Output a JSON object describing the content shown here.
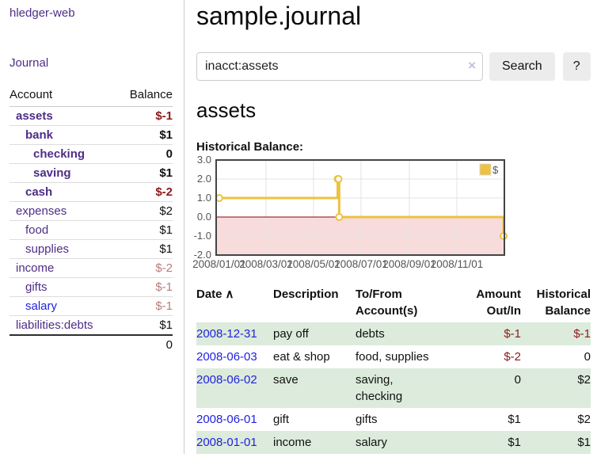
{
  "colors": {
    "purple_link": "#4d2d87",
    "blue_link": "#2222dd",
    "negative_deep": "#8b1a1a",
    "negative_soft": "#b87c7c",
    "row_green": "#dcebdc",
    "series_yellow": "#edc240",
    "negative_region_pink": "#f8dcdc",
    "zero_line_red": "#8b0000"
  },
  "brand": {
    "label": "hledger-web"
  },
  "nav": {
    "journal": "Journal"
  },
  "sidebar": {
    "account_header": "Account",
    "balance_header": "Balance",
    "rows": [
      {
        "label": "assets",
        "balance": "$-1",
        "row_class": "lvl1 emph",
        "link_class": "",
        "bal_class": "neg-deep"
      },
      {
        "label": "bank",
        "balance": "$1",
        "row_class": "lvl2 emph",
        "link_class": "",
        "bal_class": ""
      },
      {
        "label": "checking",
        "balance": "0",
        "row_class": "lvl3 emph",
        "link_class": "",
        "bal_class": ""
      },
      {
        "label": "saving",
        "balance": "$1",
        "row_class": "lvl3 emph",
        "link_class": "",
        "bal_class": ""
      },
      {
        "label": "cash",
        "balance": "$-2",
        "row_class": "lvl2 emph",
        "link_class": "",
        "bal_class": "neg-deep"
      },
      {
        "label": "expenses",
        "balance": "$2",
        "row_class": "lvl1",
        "link_class": "",
        "bal_class": ""
      },
      {
        "label": "food",
        "balance": "$1",
        "row_class": "lvl2",
        "link_class": "",
        "bal_class": ""
      },
      {
        "label": "supplies",
        "balance": "$1",
        "row_class": "lvl2",
        "link_class": "",
        "bal_class": ""
      },
      {
        "label": "income",
        "balance": "$-2",
        "row_class": "lvl1",
        "link_class": "",
        "bal_class": "neg-soft"
      },
      {
        "label": "gifts",
        "balance": "$-1",
        "row_class": "lvl2",
        "link_class": "",
        "bal_class": "neg-soft"
      },
      {
        "label": "salary",
        "balance": "$-1",
        "row_class": "lvl2",
        "link_class": "blue",
        "bal_class": "neg-soft"
      },
      {
        "label": "liabilities:debts",
        "balance": "$1",
        "row_class": "lvl1",
        "link_class": "",
        "bal_class": ""
      }
    ],
    "total": "0"
  },
  "main": {
    "title": "sample.journal",
    "search": {
      "value": "inacct:assets",
      "clear_icon": "×",
      "search_label": "Search",
      "help_label": "?"
    },
    "account_heading": "assets",
    "chart_label": "Historical Balance:"
  },
  "chart_data": {
    "type": "line",
    "title": "Historical Balance:",
    "step": true,
    "legend_position": "ne",
    "grid": true,
    "ylim": [
      -2,
      3
    ],
    "xlim_days": [
      -4,
      366
    ],
    "yticks": [
      {
        "value": 3,
        "label": "3.0"
      },
      {
        "value": 2,
        "label": "2.0"
      },
      {
        "value": 1,
        "label": "1.0"
      },
      {
        "value": 0,
        "label": "0.0"
      },
      {
        "value": -1,
        "label": "-1.0"
      },
      {
        "value": -2,
        "label": "-2.0"
      }
    ],
    "xticks": [
      {
        "day": 0,
        "label": "2008/01/01"
      },
      {
        "day": 60,
        "label": "2008/03/01"
      },
      {
        "day": 121,
        "label": "2008/05/01"
      },
      {
        "day": 182,
        "label": "2008/07/01"
      },
      {
        "day": 244,
        "label": "2008/09/01"
      },
      {
        "day": 305,
        "label": "2008/11/01"
      }
    ],
    "series": [
      {
        "name": "$",
        "color": "#edc240",
        "points": [
          {
            "date": "2008/01/01",
            "day": 0,
            "value": 1
          },
          {
            "date": "2008/06/01",
            "day": 152,
            "value": 2
          },
          {
            "date": "2008/06/02",
            "day": 153,
            "value": 2
          },
          {
            "date": "2008/06/03",
            "day": 154,
            "value": 0
          },
          {
            "date": "2008/12/31",
            "day": 365,
            "value": -1
          }
        ]
      }
    ],
    "negative_region_fill": "#f8dcdc",
    "zero_line_color": "#8b0000"
  },
  "transactions": {
    "headers": {
      "date": "Date",
      "sort_icon": "∧",
      "description": "Description",
      "accounts": "To/From\nAccount(s)",
      "amount": "Amount\nOut/In",
      "balance": "Historical\nBalance"
    },
    "rows": [
      {
        "date": "2008-12-31",
        "description": "pay off",
        "accounts": "debts",
        "amount": "$-1",
        "amount_class": "neg-deep",
        "balance": "$-1",
        "bal_class": "neg-deep"
      },
      {
        "date": "2008-06-03",
        "description": "eat & shop",
        "accounts": "food, supplies",
        "amount": "$-2",
        "amount_class": "neg-deep",
        "balance": "0",
        "bal_class": ""
      },
      {
        "date": "2008-06-02",
        "description": "save",
        "accounts": "saving,\nchecking",
        "amount": "0",
        "amount_class": "",
        "balance": "$2",
        "bal_class": ""
      },
      {
        "date": "2008-06-01",
        "description": "gift",
        "accounts": "gifts",
        "amount": "$1",
        "amount_class": "",
        "balance": "$2",
        "bal_class": ""
      },
      {
        "date": "2008-01-01",
        "description": "income",
        "accounts": "salary",
        "amount": "$1",
        "amount_class": "",
        "balance": "$1",
        "bal_class": ""
      }
    ]
  }
}
